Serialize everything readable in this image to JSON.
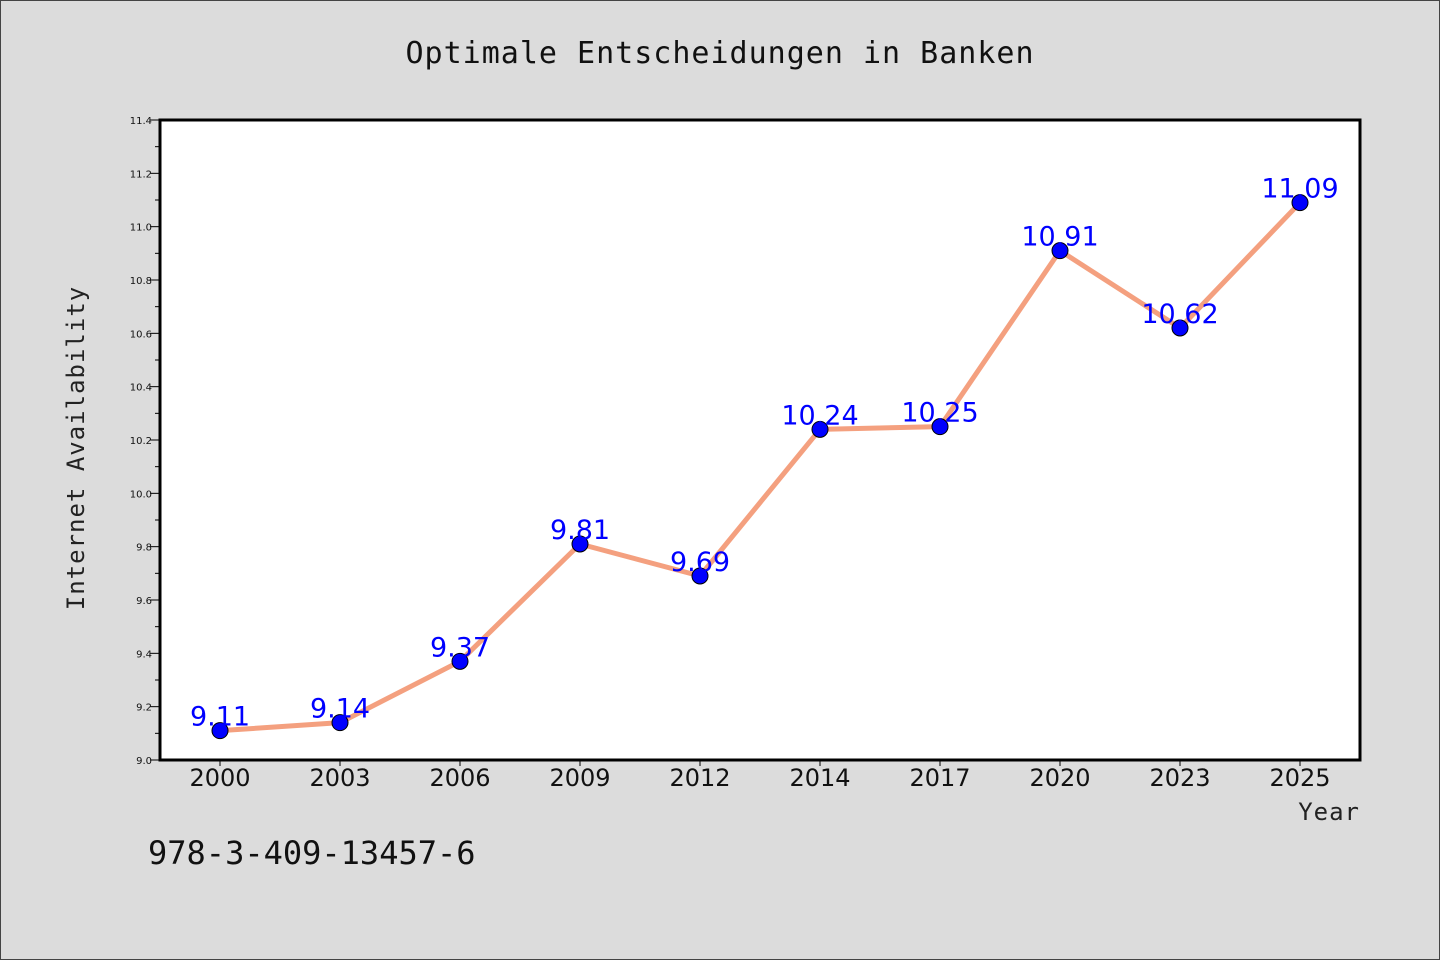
{
  "chart_data": {
    "type": "line",
    "title": "Optimale Entscheidungen in Banken",
    "xlabel": "Year",
    "ylabel": "Internet Availability",
    "categories": [
      "2000",
      "2003",
      "2006",
      "2009",
      "2012",
      "2014",
      "2017",
      "2020",
      "2023",
      "2025"
    ],
    "series": [
      {
        "values": [
          9.11,
          9.14,
          9.37,
          9.81,
          9.69,
          10.24,
          10.25,
          10.91,
          10.62,
          11.09
        ],
        "data_labels": [
          "9.11",
          "9.14",
          "9.37",
          "9.81",
          "9.69",
          "10.24",
          "10.25",
          "10.91",
          "10.62",
          "11.09"
        ]
      }
    ],
    "ylim": [
      9.0,
      11.4
    ],
    "yticks": [
      "9.0",
      "9.2",
      "9.4",
      "9.6",
      "9.8",
      "10.0",
      "10.2",
      "10.4",
      "10.6",
      "10.8",
      "11.0",
      "11.2",
      "11.4"
    ],
    "grid": false,
    "line_color": "#f4a07f",
    "marker_color": "#0000ff",
    "label_color": "#0000ff",
    "background_color": "#dcdcdc",
    "plot_background_color": "#ffffff"
  },
  "footer": {
    "isbn": "978-3-409-13457-6"
  }
}
